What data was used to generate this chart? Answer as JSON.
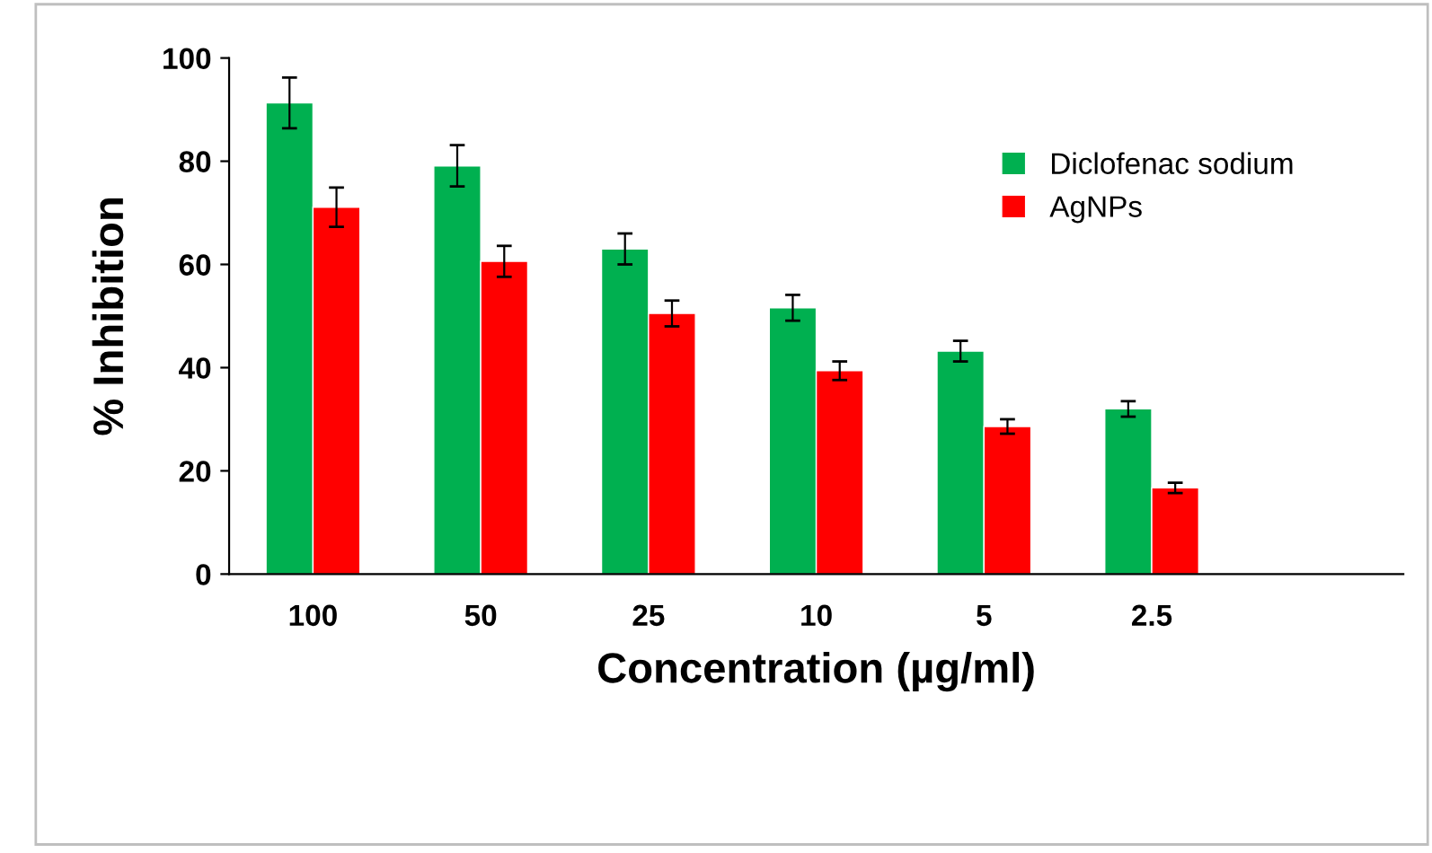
{
  "chart_data": {
    "type": "bar",
    "xlabel": "Concentration (µg/ml)",
    "ylabel": "% Inhibition",
    "categories": [
      "100",
      "50",
      "25",
      "10",
      "5",
      "2.5",
      null
    ],
    "series": [
      {
        "name": "Diclofenac sodium",
        "color": "#00b050",
        "values": [
          91.3,
          79.1,
          63,
          51.6,
          43.2,
          32,
          null
        ],
        "errors": [
          4.9,
          4,
          3,
          2.5,
          2,
          1.5,
          null
        ]
      },
      {
        "name": "AgNPs",
        "color": "#ff0000",
        "values": [
          71.1,
          60.6,
          50.5,
          39.4,
          28.6,
          16.7,
          null
        ],
        "errors": [
          3.8,
          3,
          2.5,
          1.8,
          1.4,
          1,
          null
        ]
      }
    ],
    "ylim": [
      0,
      100
    ],
    "yticks": [
      0,
      20,
      40,
      60,
      80,
      100
    ],
    "grid": false,
    "legend": "top right"
  }
}
